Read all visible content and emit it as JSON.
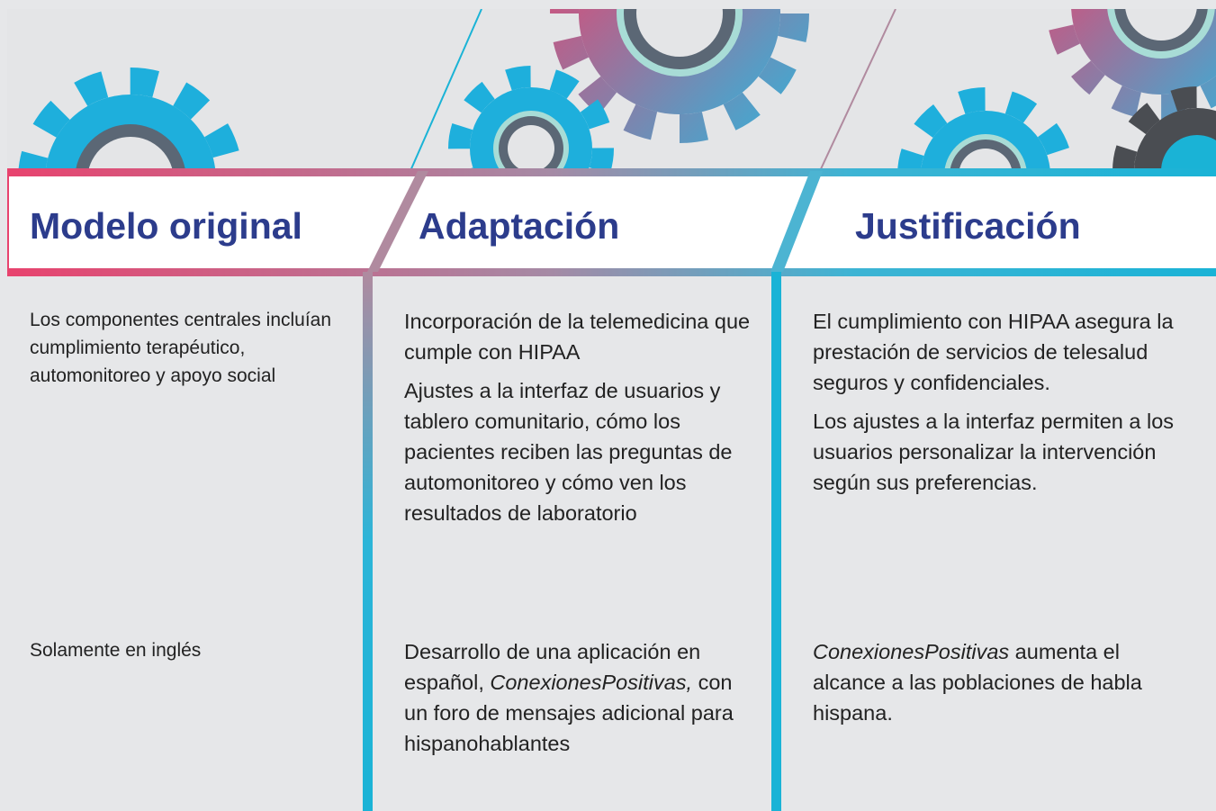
{
  "headers": [
    "Modelo original",
    "Adaptación",
    "Justificación"
  ],
  "rows": [
    [
      [
        "Los componentes centrales incluían cumplimiento terapéutico, automonitoreo y apoyo social"
      ],
      [
        "Incorporación de la telemedicina que cumple con HIPAA",
        "Ajustes a la interfaz de usuarios y tablero comunitario, cómo los pacientes reciben las preguntas de automonitoreo y cómo ven los resultados de laboratorio"
      ],
      [
        "El cumplimiento con HIPAA asegura la prestación de servicios de telesalud seguros y confidenciales.",
        "Los ajustes a la interfaz permiten a los usuarios personalizar la intervención según sus preferencias."
      ]
    ],
    [
      [
        "Solamente en inglés"
      ],
      [
        [
          "Desarrollo de una aplicación en español, ",
          {
            "italic": "ConexionesPositivas,"
          },
          " con un foro de mensajes adicional para hispanohablantes"
        ]
      ],
      [
        [
          {
            "italic": "ConexionesPositivas"
          },
          " aumenta el alcance a las poblaciones de habla hispana."
        ]
      ]
    ]
  ]
}
